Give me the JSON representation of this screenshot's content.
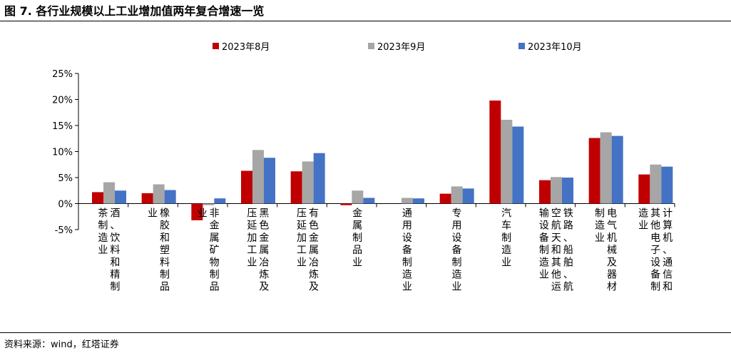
{
  "title": "图 7. 各行业规模以上工业增加值两年复合增速一览",
  "source": "资料来源：wind，红塔证券",
  "chart_data": {
    "type": "bar",
    "categories": [
      "酒、饮料和精制茶制造业",
      "橡胶和塑料制品业",
      "非金属矿物制品业",
      "黑色金属冶炼及压延加工业",
      "有色金属冶炼及压延加工业",
      "金属制品业",
      "通用设备制造业",
      "专用设备制造业",
      "汽车制造业",
      "铁路、船舶、航空航天和其他运输设备制造业",
      "电气机械及器材制造业",
      "计算机、通信和其他电子设备制造业"
    ],
    "series": [
      {
        "name": "2023年8月",
        "color": "#c00000",
        "values": [
          2.2,
          2.0,
          -3.2,
          6.3,
          6.2,
          -0.3,
          0.0,
          1.9,
          19.8,
          4.5,
          12.6,
          5.6
        ]
      },
      {
        "name": "2023年9月",
        "color": "#a6a6a6",
        "values": [
          4.1,
          3.7,
          -0.3,
          10.3,
          8.1,
          2.5,
          1.1,
          3.3,
          16.1,
          5.1,
          13.7,
          7.5
        ]
      },
      {
        "name": "2023年10月",
        "color": "#4472c4",
        "values": [
          2.5,
          2.6,
          1.0,
          8.8,
          9.7,
          1.1,
          1.0,
          2.9,
          14.8,
          5.0,
          13.0,
          7.1
        ]
      }
    ],
    "yticks": [
      "25%",
      "20%",
      "15%",
      "10%",
      "5%",
      "0%",
      "-5%"
    ],
    "ylim": [
      -5,
      25
    ],
    "legend": "top",
    "grid": false
  }
}
